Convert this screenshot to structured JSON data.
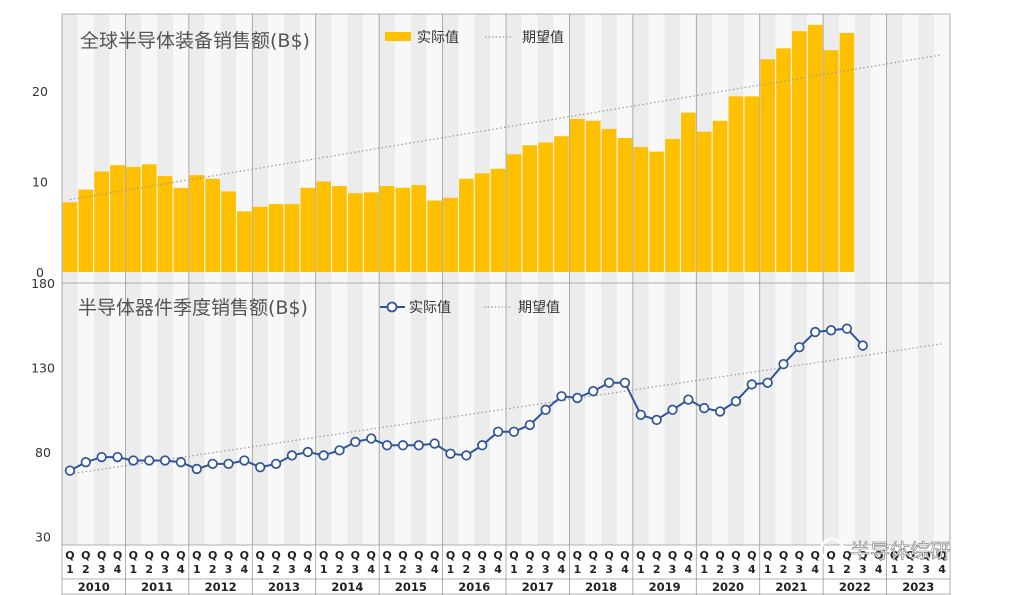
{
  "quarter_labels": [
    "Q1",
    "Q2",
    "Q3",
    "Q4"
  ],
  "years": [
    "2010",
    "2011",
    "2012",
    "2013",
    "2014",
    "2015",
    "2016",
    "2017",
    "2018",
    "2019",
    "2020",
    "2021",
    "2022",
    "2023"
  ],
  "watermark": "半导体综研",
  "chart_data": [
    {
      "type": "bar",
      "title": "全球半导体装备销售额(B$)",
      "legend": [
        {
          "label": "实际值",
          "color": "#FFC000"
        },
        {
          "label": "期望值",
          "color": "#A0A0A0",
          "style": "dotted-line"
        }
      ],
      "y_ticks": [
        0,
        10,
        20
      ],
      "ylim": [
        0,
        28.5
      ],
      "series": [
        {
          "name": "实际值",
          "color": "#FFC000",
          "values": [
            7.7,
            9.1,
            11.1,
            11.8,
            11.6,
            11.9,
            10.6,
            9.3,
            10.7,
            10.3,
            8.9,
            6.7,
            7.2,
            7.5,
            7.5,
            9.3,
            10.0,
            9.5,
            8.7,
            8.8,
            9.5,
            9.3,
            9.6,
            7.9,
            8.2,
            10.3,
            10.9,
            11.4,
            13.0,
            14.0,
            14.3,
            15.0,
            16.9,
            16.7,
            15.8,
            14.8,
            13.8,
            13.3,
            14.7,
            17.6,
            15.5,
            16.7,
            19.4,
            19.4,
            23.5,
            24.7,
            26.6,
            27.3,
            24.5,
            26.4
          ]
        }
      ],
      "trend": {
        "name": "期望值",
        "start": 8.0,
        "end": 24.0
      }
    },
    {
      "type": "line",
      "title": "半导体器件季度销售额(B$)",
      "legend": [
        {
          "label": "实际值",
          "color": "#2F5597",
          "style": "line-marker"
        },
        {
          "label": "期望值",
          "color": "#A0A0A0",
          "style": "dotted-line"
        }
      ],
      "y_ticks": [
        30,
        80,
        130,
        180
      ],
      "ylim": [
        25,
        180
      ],
      "series": [
        {
          "name": "实际值",
          "color": "#2F5597",
          "values": [
            69,
            74,
            77,
            77,
            75,
            75,
            75,
            74,
            70,
            73,
            73,
            75,
            71,
            73,
            78,
            80,
            78,
            81,
            86,
            88,
            84,
            84,
            84,
            85,
            79,
            78,
            84,
            92,
            92,
            96,
            105,
            113,
            112,
            116,
            121,
            121,
            102,
            99,
            105,
            111,
            106,
            104,
            110,
            120,
            121,
            132,
            142,
            151,
            152,
            153,
            143
          ]
        }
      ],
      "trend": {
        "name": "期望值",
        "start": 67,
        "end": 144
      }
    }
  ]
}
